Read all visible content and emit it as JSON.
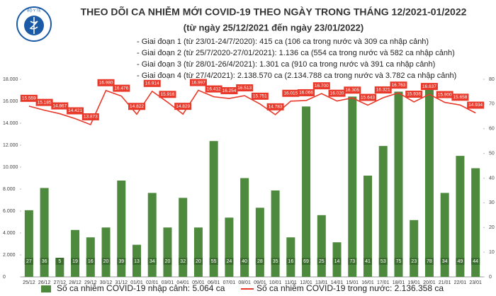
{
  "brand": "BỘ Y TẾ",
  "chart_data": {
    "type": "bar-line",
    "title": "THEO DÕI CA NHIỄM MỚI COVID-19 THEO NGÀY TRONG THÁNG 12/2021-01/2022",
    "subtitle": "(từ ngày 25/12/2021 đến ngày 23/01/2022)",
    "annotations": [
      "- Giai đoạn 1 (từ 23/01-24/7/2020): 415 ca (106 ca trong nước và 309 ca nhập cảnh)",
      "- Giai đoạn 2 (từ 25/7/2020-27/01/2021): 1.136 ca (554 ca trong nước và 582 ca nhập cảnh)",
      "- Giai đoạn 3 (từ 28/01-26/4/2021): 1.301 ca (910 ca trong nước và 391 ca nhập cảnh)",
      "- Giai đoạn 4 (từ 27/4/2021): 2.138.570 ca (2.134.788 ca trong nước và 3.782 ca nhập cảnh)"
    ],
    "categories": [
      "25/12",
      "26/12",
      "27/12",
      "28/12",
      "29/12",
      "30/12",
      "31/12",
      "01/01",
      "02/01",
      "03/01",
      "04/01",
      "05/01",
      "06/01",
      "07/01",
      "08/01",
      "09/01",
      "10/01",
      "11/01",
      "12/01",
      "13/01",
      "14/01",
      "15/01",
      "16/01",
      "17/01",
      "18/01",
      "19/01",
      "20/01",
      "21/01",
      "22/01",
      "23/01"
    ],
    "series": [
      {
        "name": "Số ca nhiễm COVID-19 nhập cảnh: 5.064 ca",
        "color": "#4e8a3e",
        "axis": "y2",
        "kind": "bar",
        "values": [
          27,
          36,
          5,
          19,
          16,
          20,
          39,
          13,
          34,
          20,
          32,
          20,
          55,
          24,
          40,
          28,
          35,
          16,
          69,
          25,
          14,
          73,
          41,
          53,
          75,
          23,
          78,
          34,
          49,
          44
        ]
      },
      {
        "name": "Số ca nhiễm COVID-19 trong nước: 2.136.358 ca",
        "color": "#e8392a",
        "kind": "line",
        "values": [
          15559,
          15185,
          14867,
          14421,
          13873,
          16980,
          16476,
          14822,
          16914,
          15916,
          14829,
          16997,
          16412,
          16254,
          16513,
          15751,
          14783,
          16015,
          16066,
          16700,
          16020,
          16305,
          15643,
          16321,
          16763,
          15936,
          16637,
          15900,
          15658,
          14934
        ],
        "value_labels": [
          "15.559",
          "15.185",
          "14.867",
          "14.421",
          "13.873",
          "16.980",
          "16.476",
          "14.822",
          "16.914",
          "15.916",
          "14.829",
          "16.997",
          "16.412",
          "16.254",
          "16.513",
          "15.751",
          "14.783",
          "16.015",
          "16.066",
          "16.700",
          "16.020",
          "16.305",
          "15.643",
          "16.321",
          "16.763",
          "15.936",
          "16.637",
          "15.900",
          "15.658",
          "14.934"
        ]
      }
    ],
    "ylim": [
      0,
      18000
    ],
    "yticks": [
      0,
      {
        "value": 2000,
        "label": "2.000"
      },
      {
        "value": 4000,
        "label": "4.000"
      },
      {
        "value": 6000,
        "label": "6.000"
      },
      {
        "value": 8000,
        "label": "8.000"
      },
      {
        "value": 10000,
        "label": "10.000"
      },
      {
        "value": 12000,
        "label": "12.000"
      },
      {
        "value": 14000,
        "label": "14.000"
      },
      {
        "value": 16000,
        "label": "16.000"
      },
      {
        "value": 18000,
        "label": "18.000"
      }
    ],
    "y2lim": [
      0,
      80
    ],
    "y2ticks": [
      0,
      10,
      20,
      30,
      40,
      50,
      60,
      70,
      80
    ],
    "grid": false
  }
}
